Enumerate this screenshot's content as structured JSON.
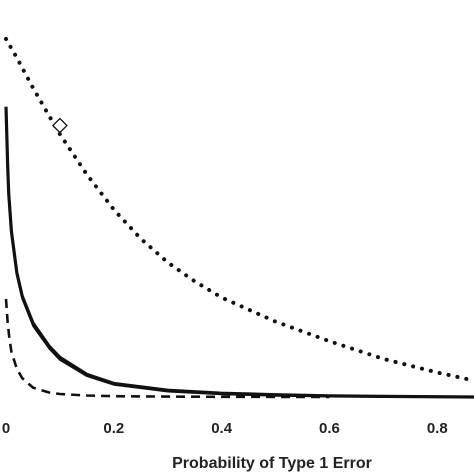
{
  "chart_data": {
    "type": "line",
    "title": "",
    "xlabel": "Probability of Type 1 Error",
    "ylabel": "",
    "xlim": [
      0,
      0.87
    ],
    "ylim": [
      0,
      1
    ],
    "x_ticks": [
      "0",
      "0.2",
      "0.4",
      "0.6",
      "0.8"
    ],
    "x_tick_values": [
      0,
      0.2,
      0.4,
      0.6,
      0.8
    ],
    "grid": false,
    "legend": "none",
    "series": [
      {
        "style": "dotted",
        "x": [
          0,
          0.02,
          0.05,
          0.08,
          0.1,
          0.15,
          0.2,
          0.25,
          0.3,
          0.35,
          0.4,
          0.5,
          0.6,
          0.7,
          0.8,
          0.87
        ],
        "y": [
          0.95,
          0.9,
          0.82,
          0.746,
          0.697,
          0.59,
          0.497,
          0.42,
          0.357,
          0.307,
          0.264,
          0.2,
          0.148,
          0.101,
          0.065,
          0.043
        ]
      },
      {
        "style": "solid-thick",
        "x": [
          0,
          0.003,
          0.005,
          0.01,
          0.02,
          0.03,
          0.05,
          0.08,
          0.1,
          0.15,
          0.2,
          0.3,
          0.4,
          0.5,
          0.6,
          0.7,
          0.87
        ],
        "y": [
          0.77,
          0.62,
          0.54,
          0.44,
          0.33,
          0.268,
          0.196,
          0.135,
          0.105,
          0.06,
          0.036,
          0.018,
          0.01,
          0.006,
          0.003,
          0.0015,
          0
        ]
      },
      {
        "style": "solid-thin",
        "x": [
          0.01,
          0.02,
          0.03,
          0.05,
          0.08,
          0.1,
          0.15,
          0.2,
          0.3,
          0.4,
          0.5,
          0.6
        ],
        "y": [
          0.435,
          0.322,
          0.26,
          0.188,
          0.128,
          0.098,
          0.055,
          0.032,
          0.014,
          0.007,
          0.003,
          0.001
        ]
      },
      {
        "style": "dashed",
        "x": [
          0,
          0.003,
          0.006,
          0.01,
          0.02,
          0.03,
          0.05,
          0.08,
          0.1,
          0.15,
          0.2,
          0.3,
          0.4,
          0.5,
          0.6
        ],
        "y": [
          0.26,
          0.2,
          0.16,
          0.12,
          0.075,
          0.05,
          0.025,
          0.012,
          0.008,
          0.004,
          0.002,
          0.001,
          0.0005,
          0.0002,
          0
        ]
      }
    ],
    "marker": {
      "shape": "diamond",
      "x": 0.1,
      "y": 0.72
    }
  }
}
